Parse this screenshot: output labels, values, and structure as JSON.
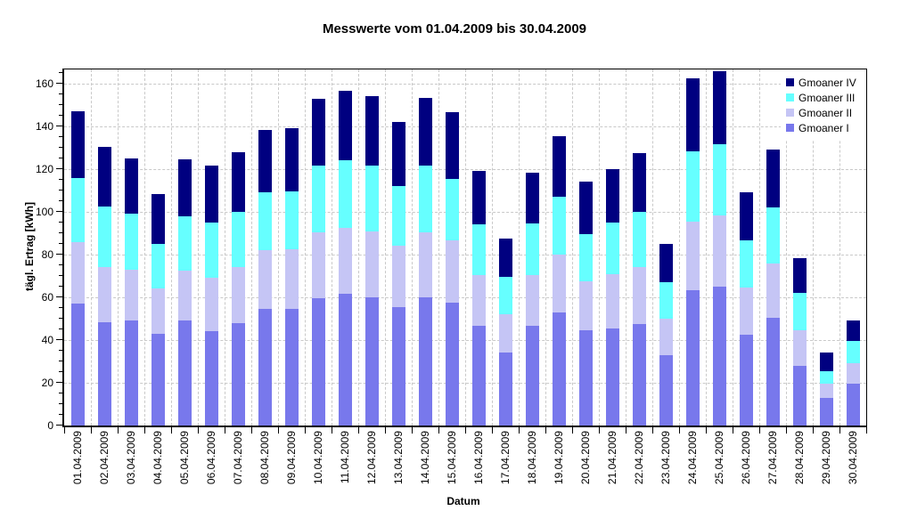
{
  "title": "Messwerte vom 01.04.2009 bis 30.04.2009",
  "chart_data": {
    "type": "bar",
    "stacked": true,
    "title": "Messwerte vom 01.04.2009 bis 30.04.2009",
    "xlabel": "Datum",
    "ylabel": "tägl. Ertrag [kWh]",
    "ylim": [
      0,
      166.7
    ],
    "yticks": [
      0,
      20,
      40,
      60,
      80,
      100,
      120,
      140,
      160
    ],
    "minor_tick_step": 5,
    "grid": true,
    "legend_position": "top-right-inside",
    "categories": [
      "01.04.2009",
      "02.04.2009",
      "03.04.2009",
      "04.04.2009",
      "05.04.2009",
      "06.04.2009",
      "07.04.2009",
      "08.04.2009",
      "09.04.2009",
      "10.04.2009",
      "11.04.2009",
      "12.04.2009",
      "13.04.2009",
      "14.04.2009",
      "15.04.2009",
      "16.04.2009",
      "17.04.2009",
      "18.04.2009",
      "19.04.2009",
      "20.04.2009",
      "21.04.2009",
      "22.04.2009",
      "23.04.2009",
      "24.04.2009",
      "25.04.2009",
      "26.04.2009",
      "27.04.2009",
      "28.04.2009",
      "29.04.2009",
      "30.04.2009"
    ],
    "series": [
      {
        "name": "Gmoaner I",
        "color": "#7878ec",
        "values": [
          57,
          48.5,
          49,
          43,
          49,
          44,
          48,
          54.5,
          54.5,
          59.5,
          61.5,
          60,
          55.5,
          60,
          57.5,
          46.5,
          34,
          46.5,
          53,
          44.5,
          45.5,
          47.5,
          33,
          63.5,
          65,
          42.5,
          50.5,
          28,
          13,
          19.5
        ]
      },
      {
        "name": "Gmoaner II",
        "color": "#c5c5f5",
        "values": [
          29,
          25.5,
          24,
          21,
          23.5,
          25,
          26,
          27.5,
          28,
          31,
          31,
          31,
          28.5,
          30.5,
          29,
          24,
          18,
          24,
          27,
          23,
          25.5,
          26.5,
          17,
          32,
          33.5,
          22,
          25.5,
          16.5,
          6.5,
          9.5
        ]
      },
      {
        "name": "Gmoaner III",
        "color": "#66ffff",
        "values": [
          30,
          28.5,
          26,
          21,
          25.5,
          26,
          26,
          27,
          27,
          31,
          31.5,
          30.5,
          28,
          31,
          29,
          23.5,
          17.5,
          24,
          27,
          22,
          24,
          26,
          17,
          33,
          33,
          22,
          26,
          17.5,
          6,
          10.5
        ]
      },
      {
        "name": "Gmoaner IV",
        "color": "#000080",
        "values": [
          31,
          28,
          26,
          23.5,
          26.5,
          26.5,
          28,
          29.5,
          29.5,
          31.5,
          32.5,
          32.5,
          30,
          32,
          31,
          25,
          18,
          24,
          28.5,
          24.5,
          25,
          27.5,
          18,
          34,
          34.5,
          22.5,
          27,
          16.5,
          8.5,
          9.5
        ]
      }
    ],
    "legend_order": [
      "Gmoaner IV",
      "Gmoaner III",
      "Gmoaner II",
      "Gmoaner I"
    ]
  },
  "colors": {
    "background": "#ffffff",
    "gridline": "#c9c9c9",
    "axis": "#000000",
    "series_1": "#7878ec",
    "series_2": "#c5c5f5",
    "series_3": "#66ffff",
    "series_4": "#000080"
  }
}
